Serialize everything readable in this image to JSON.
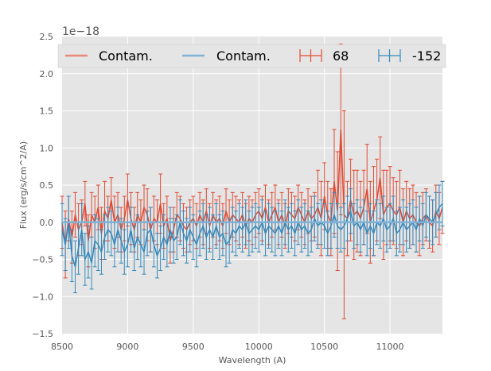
{
  "chart_data": {
    "type": "line",
    "title": "",
    "xlabel": "Wavelength (A)",
    "ylabel": "Flux (erg/s/cm^2/A)",
    "y_offset_label": "1e−18",
    "xlim": [
      8500,
      11400
    ],
    "ylim": [
      -1.5,
      2.5
    ],
    "xticks": [
      8500,
      9000,
      9500,
      10000,
      10500,
      11000
    ],
    "xtick_labels": [
      "8500",
      "9000",
      "9500",
      "10000",
      "10500",
      "11000"
    ],
    "yticks": [
      -1.5,
      -1.0,
      -0.5,
      0.0,
      0.5,
      1.0,
      1.5,
      2.0,
      2.5
    ],
    "ytick_labels": [
      "−1.5",
      "−1.0",
      "−0.5",
      "0.0",
      "0.5",
      "1.0",
      "1.5",
      "2.0",
      "2.5"
    ],
    "grid": true,
    "legend_position": "top",
    "colors": {
      "red": "#e24a33",
      "blue": "#348abd",
      "red_light": "#e8897a",
      "blue_light": "#7fb2d6",
      "background": "#e5e5e5",
      "grid": "#ffffff"
    },
    "x": [
      8500,
      8525,
      8550,
      8575,
      8600,
      8625,
      8650,
      8675,
      8700,
      8725,
      8750,
      8775,
      8800,
      8825,
      8850,
      8875,
      8900,
      8925,
      8950,
      8975,
      9000,
      9025,
      9050,
      9075,
      9100,
      9125,
      9150,
      9175,
      9200,
      9225,
      9250,
      9275,
      9300,
      9325,
      9350,
      9375,
      9400,
      9425,
      9450,
      9475,
      9500,
      9525,
      9550,
      9575,
      9600,
      9625,
      9650,
      9675,
      9700,
      9725,
      9750,
      9775,
      9800,
      9825,
      9850,
      9875,
      9900,
      9925,
      9950,
      9975,
      10000,
      10025,
      10050,
      10075,
      10100,
      10125,
      10150,
      10175,
      10200,
      10225,
      10250,
      10275,
      10300,
      10325,
      10350,
      10375,
      10400,
      10425,
      10450,
      10475,
      10500,
      10525,
      10550,
      10575,
      10600,
      10625,
      10650,
      10675,
      10700,
      10725,
      10750,
      10775,
      10800,
      10825,
      10850,
      10875,
      10900,
      10925,
      10950,
      10975,
      11000,
      11025,
      11050,
      11075,
      11100,
      11125,
      11150,
      11175,
      11200,
      11225,
      11250,
      11275,
      11300,
      11325,
      11350,
      11375,
      11400
    ],
    "series": [
      {
        "name": "68",
        "type": "errorbar",
        "color": "#e24a33",
        "values": [
          0.0,
          -0.3,
          0.05,
          -0.2,
          0.1,
          -0.1,
          0.0,
          0.25,
          -0.25,
          0.1,
          0.0,
          0.2,
          -0.15,
          0.15,
          0.05,
          0.3,
          0.0,
          0.1,
          -0.1,
          0.05,
          0.3,
          0.05,
          -0.1,
          0.1,
          0.0,
          0.2,
          0.1,
          -0.1,
          0.05,
          0.0,
          0.25,
          -0.05,
          0.05,
          -0.25,
          -0.1,
          0.1,
          0.05,
          -0.05,
          -0.1,
          0.0,
          0.05,
          -0.05,
          0.1,
          0.0,
          0.15,
          -0.05,
          0.1,
          0.0,
          0.05,
          -0.05,
          0.15,
          0.0,
          0.1,
          0.05,
          0.0,
          0.1,
          -0.05,
          0.05,
          0.0,
          0.1,
          0.15,
          0.05,
          0.2,
          0.0,
          0.1,
          0.2,
          0.0,
          0.1,
          -0.05,
          0.15,
          0.1,
          0.05,
          0.2,
          0.1,
          0.0,
          0.15,
          0.05,
          0.1,
          0.2,
          0.05,
          0.35,
          0.1,
          0.0,
          0.55,
          0.15,
          1.25,
          0.1,
          0.05,
          0.3,
          0.1,
          0.15,
          0.05,
          0.2,
          0.45,
          0.0,
          0.15,
          0.3,
          0.6,
          0.1,
          0.2,
          0.25,
          0.15,
          0.1,
          0.2,
          0.0,
          0.15,
          0.05,
          0.1,
          0.0,
          -0.05,
          0.05,
          0.1,
          0.0,
          -0.05,
          0.15,
          0.05,
          0.2
        ],
        "errors": [
          0.35,
          0.45,
          0.3,
          0.35,
          0.3,
          0.35,
          0.3,
          0.3,
          0.35,
          0.3,
          0.35,
          0.3,
          0.35,
          0.4,
          0.3,
          0.3,
          0.35,
          0.3,
          0.3,
          0.3,
          0.35,
          0.35,
          0.3,
          0.3,
          0.3,
          0.3,
          0.35,
          0.3,
          0.3,
          0.3,
          0.4,
          0.3,
          0.3,
          0.3,
          0.3,
          0.3,
          0.3,
          0.3,
          0.3,
          0.3,
          0.3,
          0.3,
          0.3,
          0.3,
          0.3,
          0.3,
          0.3,
          0.3,
          0.3,
          0.3,
          0.3,
          0.3,
          0.3,
          0.3,
          0.3,
          0.3,
          0.3,
          0.3,
          0.3,
          0.3,
          0.3,
          0.3,
          0.3,
          0.3,
          0.3,
          0.3,
          0.3,
          0.3,
          0.3,
          0.3,
          0.3,
          0.3,
          0.3,
          0.3,
          0.3,
          0.3,
          0.3,
          0.3,
          0.5,
          0.5,
          0.45,
          0.45,
          0.45,
          0.7,
          0.8,
          1.15,
          1.4,
          0.5,
          0.55,
          0.6,
          0.55,
          0.5,
          0.5,
          0.6,
          0.55,
          0.6,
          0.55,
          0.55,
          0.6,
          0.5,
          0.5,
          0.45,
          0.45,
          0.5,
          0.45,
          0.4,
          0.4,
          0.4,
          0.4,
          0.4,
          0.35,
          0.35,
          0.35,
          0.35,
          0.35,
          0.35,
          0.35
        ]
      },
      {
        "name": "-152",
        "type": "errorbar",
        "color": "#348abd",
        "values": [
          -0.1,
          -0.3,
          0.0,
          -0.45,
          -0.6,
          -0.35,
          -0.1,
          -0.5,
          -0.4,
          -0.55,
          -0.25,
          -0.3,
          -0.4,
          -0.2,
          -0.1,
          -0.15,
          -0.3,
          -0.1,
          -0.25,
          -0.4,
          -0.3,
          -0.1,
          -0.35,
          -0.2,
          -0.3,
          -0.4,
          -0.15,
          -0.1,
          -0.3,
          -0.45,
          -0.35,
          -0.2,
          -0.3,
          -0.1,
          -0.25,
          -0.2,
          0.0,
          -0.15,
          -0.25,
          -0.1,
          -0.2,
          -0.3,
          -0.15,
          -0.05,
          -0.2,
          -0.1,
          -0.2,
          -0.05,
          -0.2,
          -0.15,
          -0.3,
          -0.25,
          -0.1,
          -0.15,
          -0.05,
          -0.1,
          0.0,
          -0.15,
          -0.1,
          -0.05,
          -0.1,
          0.0,
          -0.15,
          -0.05,
          -0.1,
          -0.15,
          -0.05,
          -0.15,
          0.0,
          -0.1,
          -0.05,
          -0.15,
          0.0,
          -0.1,
          -0.05,
          -0.15,
          -0.1,
          0.05,
          -0.05,
          0.0,
          -0.05,
          -0.15,
          -0.05,
          0.1,
          -0.05,
          -0.1,
          -0.05,
          0.05,
          0.15,
          -0.05,
          0.0,
          -0.1,
          0.0,
          -0.15,
          -0.05,
          -0.15,
          0.0,
          -0.05,
          0.05,
          -0.1,
          -0.05,
          0.05,
          -0.15,
          -0.1,
          0.0,
          -0.1,
          -0.05,
          0.0,
          -0.1,
          0.05,
          -0.05,
          0.1,
          0.05,
          0.0,
          0.1,
          0.2,
          0.25
        ],
        "errors": [
          0.35,
          0.35,
          0.35,
          0.35,
          0.35,
          0.35,
          0.35,
          0.35,
          0.35,
          0.35,
          0.35,
          0.35,
          0.3,
          0.3,
          0.3,
          0.3,
          0.3,
          0.3,
          0.3,
          0.3,
          0.3,
          0.3,
          0.3,
          0.3,
          0.3,
          0.3,
          0.3,
          0.3,
          0.3,
          0.3,
          0.3,
          0.3,
          0.3,
          0.3,
          0.3,
          0.3,
          0.3,
          0.3,
          0.3,
          0.3,
          0.3,
          0.3,
          0.3,
          0.3,
          0.3,
          0.3,
          0.3,
          0.3,
          0.3,
          0.3,
          0.3,
          0.3,
          0.3,
          0.3,
          0.3,
          0.3,
          0.3,
          0.3,
          0.3,
          0.3,
          0.3,
          0.3,
          0.3,
          0.3,
          0.3,
          0.3,
          0.3,
          0.3,
          0.3,
          0.3,
          0.3,
          0.3,
          0.3,
          0.3,
          0.3,
          0.3,
          0.3,
          0.3,
          0.3,
          0.3,
          0.3,
          0.3,
          0.3,
          0.3,
          0.3,
          0.3,
          0.3,
          0.3,
          0.3,
          0.3,
          0.3,
          0.3,
          0.3,
          0.3,
          0.3,
          0.3,
          0.3,
          0.3,
          0.3,
          0.3,
          0.3,
          0.3,
          0.3,
          0.3,
          0.3,
          0.3,
          0.3,
          0.3,
          0.3,
          0.3,
          0.3,
          0.3,
          0.3,
          0.3,
          0.3,
          0.3,
          0.3
        ]
      },
      {
        "name": "Contam.",
        "type": "line",
        "color": "#e8897a",
        "value": 0.0
      },
      {
        "name": "Contam.",
        "type": "line",
        "color": "#7fb2d6",
        "value": 0.0
      }
    ],
    "legend": [
      {
        "label": "Contam.",
        "marker": "line",
        "color": "#e8897a"
      },
      {
        "label": "Contam.",
        "marker": "line",
        "color": "#7fb2d6"
      },
      {
        "label": "68",
        "marker": "errorbar",
        "color": "#e24a33"
      },
      {
        "label": "-152",
        "marker": "errorbar",
        "color": "#348abd"
      }
    ]
  }
}
